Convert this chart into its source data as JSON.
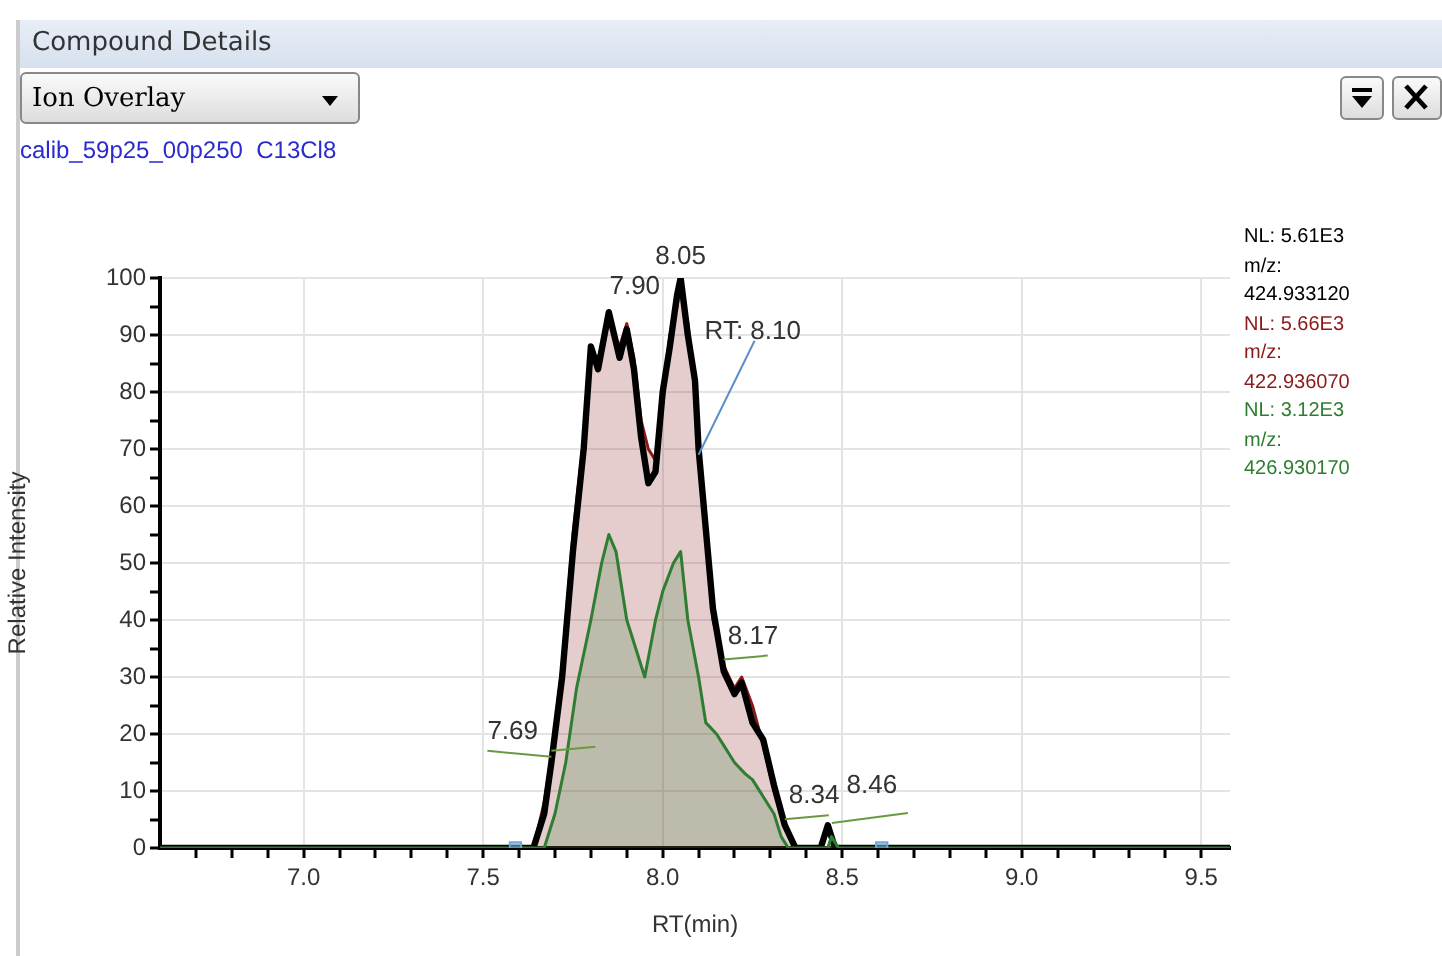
{
  "chart_data": {
    "type": "area",
    "title": "Compound Details",
    "subtitle": "calib_59p25_00p250  C13Cl8",
    "xlabel": "RT(min)",
    "ylabel": "Relative Intensity",
    "annotations": [
      "Ion Overlay",
      {
        "text": "8.05",
        "x": 8.05,
        "y": 100
      },
      {
        "text": "7.90",
        "x": 7.9,
        "y": 92
      },
      {
        "text": "RT: 8.10",
        "x": 8.1,
        "y": 69
      },
      {
        "text": "8.17",
        "x": 8.17,
        "y": 32
      },
      {
        "text": "7.69",
        "x": 7.69,
        "y": 16
      },
      {
        "text": "8.34",
        "x": 8.34,
        "y": 4
      },
      {
        "text": "8.46",
        "x": 8.46,
        "y": 3
      }
    ],
    "xlim": [
      6.6,
      9.58
    ],
    "ylim": [
      0,
      100
    ],
    "xticks": [
      {
        "value": 6.7,
        "label": null
      },
      {
        "value": 6.8,
        "label": null
      },
      {
        "value": 6.9,
        "label": null
      },
      {
        "value": 7,
        "label": "7.0"
      },
      {
        "value": 7.1,
        "label": null
      },
      {
        "value": 7.2,
        "label": null
      },
      {
        "value": 7.3,
        "label": null
      },
      {
        "value": 7.4,
        "label": null
      },
      {
        "value": 7.5,
        "label": "7.5"
      },
      {
        "value": 7.6,
        "label": null
      },
      {
        "value": 7.7,
        "label": null
      },
      {
        "value": 7.8,
        "label": null
      },
      {
        "value": 7.9,
        "label": null
      },
      {
        "value": 8,
        "label": "8.0"
      },
      {
        "value": 8.1,
        "label": null
      },
      {
        "value": 8.2,
        "label": null
      },
      {
        "value": 8.3,
        "label": null
      },
      {
        "value": 8.4,
        "label": null
      },
      {
        "value": 8.5,
        "label": "8.5"
      },
      {
        "value": 8.6,
        "label": null
      },
      {
        "value": 8.7,
        "label": null
      },
      {
        "value": 8.8,
        "label": null
      },
      {
        "value": 8.9,
        "label": null
      },
      {
        "value": 9,
        "label": "9.0"
      },
      {
        "value": 9.1,
        "label": null
      },
      {
        "value": 9.2,
        "label": null
      },
      {
        "value": 9.3,
        "label": null
      },
      {
        "value": 9.4,
        "label": null
      },
      {
        "value": 9.5,
        "label": "9.5"
      }
    ],
    "yticks": [
      0,
      {
        "value": 5,
        "label": null
      },
      10,
      {
        "value": 15,
        "label": null
      },
      20,
      {
        "value": 25,
        "label": null
      },
      30,
      {
        "value": 35,
        "label": null
      },
      40,
      {
        "value": 45,
        "label": null
      },
      50,
      {
        "value": 55,
        "label": null
      },
      60,
      {
        "value": 65,
        "label": null
      },
      70,
      {
        "value": 75,
        "label": null
      },
      80,
      {
        "value": 85,
        "label": null
      },
      90,
      {
        "value": 95,
        "label": null
      },
      100
    ],
    "grid": true,
    "legend": "right",
    "series": [
      {
        "name": "NL: 5.66E3\nm/z:\n422.936070",
        "type": "area",
        "color": "#8b1a1a",
        "x": [
          6.6,
          7.64,
          7.67,
          7.69,
          7.72,
          7.75,
          7.78,
          7.8,
          7.82,
          7.85,
          7.88,
          7.9,
          7.92,
          7.94,
          7.96,
          7.98,
          8.0,
          8.02,
          8.04,
          8.05,
          8.07,
          8.09,
          8.1,
          8.12,
          8.14,
          8.17,
          8.2,
          8.22,
          8.25,
          8.28,
          8.31,
          8.34,
          8.37,
          9.58
        ],
        "values": [
          0,
          0,
          8,
          16,
          32,
          55,
          72,
          85,
          86,
          92,
          88,
          92,
          86,
          75,
          70,
          68,
          78,
          90,
          95,
          99,
          92,
          80,
          69,
          55,
          40,
          32,
          28,
          30,
          25,
          18,
          10,
          4,
          0,
          0
        ]
      },
      {
        "name": "NL: 5.61E3\nm/z:\n424.933120",
        "type": "line",
        "color": "#000000",
        "x": [
          6.6,
          7.64,
          7.67,
          7.69,
          7.72,
          7.75,
          7.78,
          7.8,
          7.82,
          7.85,
          7.88,
          7.9,
          7.92,
          7.94,
          7.96,
          7.98,
          8.0,
          8.02,
          8.04,
          8.05,
          8.07,
          8.09,
          8.1,
          8.12,
          8.14,
          8.17,
          8.2,
          8.22,
          8.25,
          8.28,
          8.31,
          8.34,
          8.37,
          8.44,
          8.46,
          8.48,
          9.58
        ],
        "values": [
          0,
          0,
          6,
          15,
          30,
          52,
          70,
          88,
          84,
          94,
          86,
          91,
          84,
          72,
          64,
          66,
          80,
          88,
          97,
          100,
          90,
          82,
          70,
          56,
          42,
          31,
          27,
          29,
          22,
          19,
          11,
          4,
          0,
          0,
          4,
          0,
          0
        ]
      },
      {
        "name": "NL: 3.12E3\nm/z:\n426.930170",
        "type": "area",
        "color": "#2e7d32",
        "x": [
          6.6,
          7.67,
          7.7,
          7.73,
          7.76,
          7.8,
          7.83,
          7.85,
          7.87,
          7.9,
          7.92,
          7.95,
          7.98,
          8.0,
          8.03,
          8.05,
          8.07,
          8.1,
          8.12,
          8.15,
          8.17,
          8.2,
          8.23,
          8.25,
          8.28,
          8.31,
          8.33,
          8.35,
          8.46,
          8.47,
          8.49,
          9.58
        ],
        "values": [
          0,
          0,
          6,
          15,
          28,
          40,
          50,
          55,
          52,
          40,
          36,
          30,
          40,
          45,
          50,
          52,
          40,
          30,
          22,
          20,
          18,
          15,
          13,
          12,
          9,
          6,
          2,
          0,
          0,
          2,
          0,
          0
        ]
      },
      {
        "type": "scatter",
        "marker": "square",
        "color": "#6fa8dc",
        "x": [
          7.59,
          8.61
        ],
        "values": [
          0,
          0
        ]
      }
    ]
  }
}
